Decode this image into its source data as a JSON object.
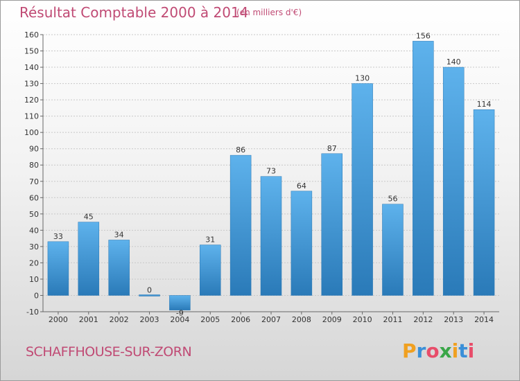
{
  "header": {
    "title": "Résultat Comptable 2000 à 2014",
    "subtitle": "(en milliers d'€)"
  },
  "footer": {
    "commune": "SCHAFFHOUSE-SUR-ZORN",
    "logo_text": "Proxiti"
  },
  "colors": {
    "title": "#c04a74",
    "bar_top": "#5eb2ec",
    "bar_bottom": "#2a7ab8"
  },
  "chart_data": {
    "type": "bar",
    "title": "Résultat Comptable 2000 à 2014",
    "subtitle": "(en milliers d'€)",
    "categories": [
      "2000",
      "2001",
      "2002",
      "2003",
      "2004",
      "2005",
      "2006",
      "2007",
      "2008",
      "2009",
      "2010",
      "2011",
      "2012",
      "2013",
      "2014"
    ],
    "values": [
      33,
      45,
      34,
      0,
      -9,
      31,
      86,
      73,
      64,
      87,
      130,
      56,
      156,
      140,
      114
    ],
    "value_labels": [
      "33",
      "45",
      "34",
      "0",
      "-9",
      "31",
      "86",
      "73",
      "64",
      "87",
      "130",
      "56",
      "156",
      "140",
      "114"
    ],
    "ylim": [
      -10,
      160
    ],
    "yticks": [
      -10,
      0,
      10,
      20,
      30,
      40,
      50,
      60,
      70,
      80,
      90,
      100,
      110,
      120,
      130,
      140,
      150,
      160
    ],
    "grid": true,
    "legend": "none"
  }
}
